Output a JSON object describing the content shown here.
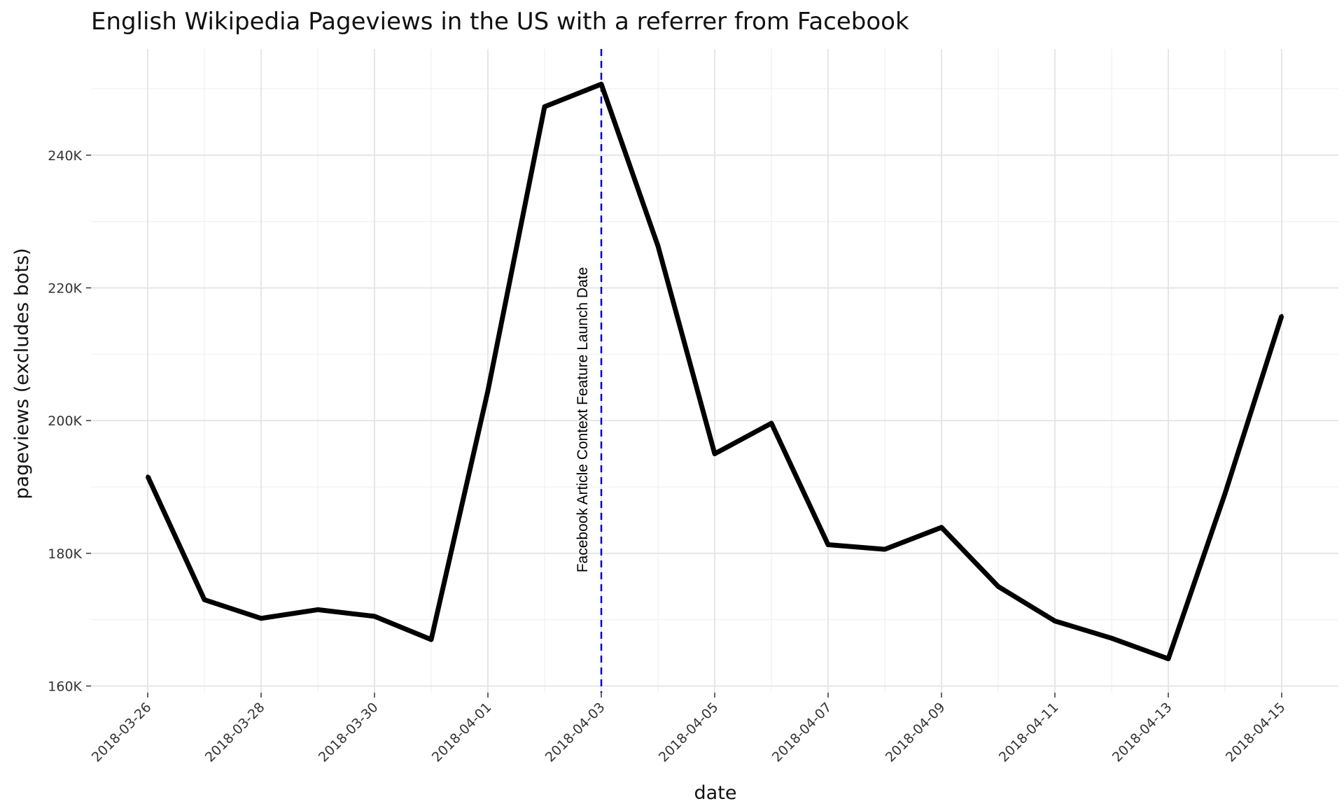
{
  "chart_data": {
    "type": "line",
    "title": "English Wikipedia Pageviews in the US with a referrer from Facebook",
    "xlabel": "date",
    "ylabel": "pageviews (excludes bots)",
    "x_ticks": [
      "2018-03-26",
      "2018-03-28",
      "2018-03-30",
      "2018-04-01",
      "2018-04-03",
      "2018-04-05",
      "2018-04-07",
      "2018-04-09",
      "2018-04-11",
      "2018-04-13",
      "2018-04-15"
    ],
    "y_ticks": [
      {
        "value": 160000,
        "label": "160K"
      },
      {
        "value": 180000,
        "label": "180K"
      },
      {
        "value": 200000,
        "label": "200K"
      },
      {
        "value": 220000,
        "label": "220K"
      },
      {
        "value": 240000,
        "label": "240K"
      }
    ],
    "ylim": [
      159000,
      256000
    ],
    "xlim": [
      "2018-03-25",
      "2018-04-16"
    ],
    "grid": true,
    "line_color": "#000000",
    "series": [
      {
        "x": [
          "2018-03-26",
          "2018-03-27",
          "2018-03-28",
          "2018-03-29",
          "2018-03-30",
          "2018-03-31",
          "2018-04-01",
          "2018-04-02",
          "2018-04-03",
          "2018-04-04",
          "2018-04-05",
          "2018-04-06",
          "2018-04-07",
          "2018-04-08",
          "2018-04-09",
          "2018-04-10",
          "2018-04-11",
          "2018-04-12",
          "2018-04-13",
          "2018-04-14",
          "2018-04-15"
        ],
        "values": [
          191600,
          173000,
          170200,
          171500,
          170500,
          167000,
          204500,
          247300,
          250700,
          226300,
          195000,
          199600,
          181300,
          180600,
          183900,
          175000,
          169800,
          167200,
          164100,
          189000,
          215800
        ]
      }
    ],
    "annotations": [
      {
        "type": "vline",
        "x": "2018-04-03",
        "color": "#0000cc",
        "dash": "dashed",
        "label": "Facebook Article Context Feature Launch Date"
      }
    ]
  }
}
